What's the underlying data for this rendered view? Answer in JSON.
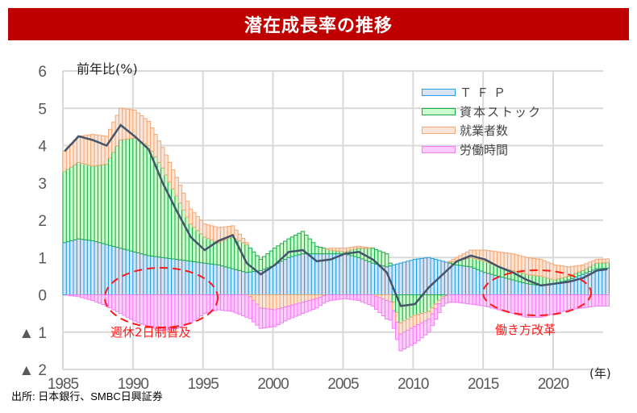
{
  "title": "潜在成長率の推移",
  "source": "出所: 日本銀行、SMBC日興証券",
  "chart_data": {
    "type": "bar",
    "subtype": "stacked bar with line",
    "title": "潜在成長率の推移",
    "ylabel": "前年比(%)",
    "xlabel": "(年)",
    "ylim": [
      -2,
      6
    ],
    "xlim": [
      1985,
      2024
    ],
    "grid": true,
    "legend_position": "top-right",
    "yticks": [
      6,
      5,
      4,
      3,
      2,
      1,
      0,
      -1,
      -2
    ],
    "ytick_labels": [
      "6",
      "5",
      "4",
      "3",
      "2",
      "1",
      "0",
      "▲ 1",
      "▲ 2"
    ],
    "xticks": [
      1985,
      1990,
      1995,
      2000,
      2005,
      2010,
      2015,
      2020
    ],
    "xtick_labels": [
      "1985",
      "1990",
      "1995",
      "2000",
      "2005",
      "2010",
      "2015",
      "2020"
    ],
    "frequency": "quarterly (interpolated from annual readings)",
    "years": [
      1985,
      1986,
      1987,
      1988,
      1989,
      1990,
      1991,
      1992,
      1993,
      1994,
      1995,
      1996,
      1997,
      1998,
      1999,
      2000,
      2001,
      2002,
      2003,
      2004,
      2005,
      2006,
      2007,
      2008,
      2009,
      2010,
      2011,
      2012,
      2013,
      2014,
      2015,
      2016,
      2017,
      2018,
      2019,
      2020,
      2021,
      2022,
      2023,
      2024
    ],
    "series": [
      {
        "name": "ＴＦＰ",
        "color": "#dae3f3",
        "edge": "#1fa0e0",
        "values": [
          1.4,
          1.5,
          1.45,
          1.35,
          1.25,
          1.15,
          1.05,
          1.0,
          0.95,
          0.9,
          0.85,
          0.8,
          0.7,
          0.6,
          0.65,
          0.8,
          1.0,
          1.1,
          1.1,
          1.1,
          1.1,
          1.0,
          0.85,
          0.75,
          0.85,
          0.95,
          1.0,
          0.9,
          0.8,
          0.75,
          0.6,
          0.5,
          0.4,
          0.3,
          0.25,
          0.3,
          0.4,
          0.55,
          0.7,
          0.72
        ]
      },
      {
        "name": "資本ストック",
        "color": "#ccffcc",
        "edge": "#19a84a",
        "values": [
          1.9,
          2.05,
          2.0,
          2.15,
          2.9,
          3.05,
          2.95,
          2.4,
          1.7,
          1.0,
          0.7,
          0.6,
          0.85,
          0.75,
          0.3,
          0.45,
          0.5,
          0.6,
          0.2,
          0.1,
          0.05,
          0.25,
          0.4,
          0.35,
          -0.75,
          -0.55,
          -0.45,
          -0.05,
          0.1,
          0.25,
          0.3,
          0.25,
          0.25,
          0.25,
          0.25,
          0.1,
          0.1,
          0.1,
          0.15,
          0.15
        ]
      },
      {
        "name": "就業者数",
        "color": "#fce4d6",
        "edge": "#f2a774",
        "values": [
          0.55,
          0.7,
          0.85,
          0.75,
          0.85,
          0.75,
          0.65,
          0.55,
          0.5,
          0.4,
          0.35,
          0.4,
          0.3,
          0.05,
          -0.35,
          -0.4,
          -0.3,
          -0.2,
          -0.1,
          0.05,
          0.1,
          0.05,
          0.0,
          -0.15,
          -0.3,
          -0.3,
          -0.2,
          -0.05,
          0.1,
          0.2,
          0.3,
          0.4,
          0.45,
          0.45,
          0.45,
          0.4,
          0.25,
          0.15,
          0.1,
          0.1
        ]
      },
      {
        "name": "労働時間",
        "color": "#ffccff",
        "edge": "#f47cf2",
        "values": [
          0.0,
          -0.05,
          -0.15,
          -0.3,
          -0.5,
          -0.7,
          -0.85,
          -0.95,
          -0.9,
          -0.75,
          -0.5,
          -0.4,
          -0.45,
          -0.6,
          -0.55,
          -0.45,
          -0.35,
          -0.3,
          -0.25,
          -0.15,
          -0.1,
          -0.15,
          -0.3,
          -0.5,
          -0.45,
          -0.45,
          -0.35,
          -0.2,
          -0.2,
          -0.25,
          -0.3,
          -0.4,
          -0.5,
          -0.6,
          -0.6,
          -0.5,
          -0.4,
          -0.35,
          -0.3,
          -0.3
        ]
      }
    ],
    "line": {
      "name": "潜在成長率",
      "color": "#44546a",
      "values": [
        3.85,
        4.25,
        4.15,
        4.0,
        4.55,
        4.25,
        3.9,
        3.0,
        2.25,
        1.55,
        1.2,
        1.45,
        1.6,
        0.85,
        0.55,
        0.8,
        1.15,
        1.2,
        0.9,
        0.95,
        1.1,
        1.15,
        0.95,
        0.6,
        -0.3,
        -0.25,
        0.2,
        0.55,
        0.9,
        1.05,
        0.95,
        0.75,
        0.6,
        0.4,
        0.25,
        0.3,
        0.35,
        0.45,
        0.65,
        0.7
      ]
    },
    "annotations": [
      {
        "text": "週休2日制普及",
        "near_year": 1992
      },
      {
        "text": "働き方改革",
        "near_year": 2018
      }
    ]
  }
}
